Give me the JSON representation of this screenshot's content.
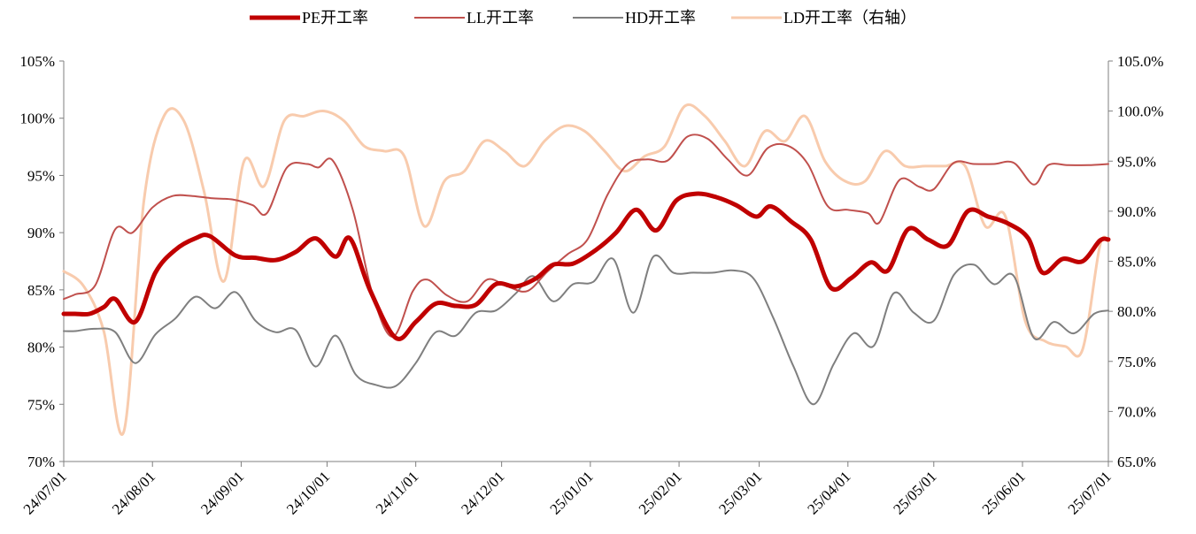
{
  "chart_data": {
    "type": "line",
    "title": "",
    "xlabel": "",
    "ylabel": "",
    "x_tick_labels": [
      "24/07/01",
      "24/08/01",
      "24/09/01",
      "24/10/01",
      "24/11/01",
      "24/12/01",
      "25/01/01",
      "25/02/01",
      "25/03/01",
      "25/04/01",
      "25/05/01",
      "25/06/01",
      "25/07/01"
    ],
    "x_range": [
      "2024-07-01",
      "2025-07-01"
    ],
    "y_left": {
      "ylim": [
        70,
        105
      ],
      "ticks": [
        70,
        75,
        80,
        85,
        90,
        95,
        100,
        105
      ],
      "tick_labels": [
        "70%",
        "75%",
        "80%",
        "85%",
        "90%",
        "95%",
        "100%",
        "105%"
      ]
    },
    "y_right": {
      "ylim": [
        65,
        105
      ],
      "ticks": [
        65,
        70,
        75,
        80,
        85,
        90,
        95,
        100,
        105
      ],
      "tick_labels": [
        "65.0%",
        "70.0%",
        "75.0%",
        "80.0%",
        "85.0%",
        "90.0%",
        "95.0%",
        "100.0%",
        "105.0%"
      ]
    },
    "grid": false,
    "legend_position": "top-center",
    "series": [
      {
        "name": "PE开工率",
        "axis": "left",
        "color": "#C00000",
        "width": 5,
        "points": [
          [
            "2024-07-01",
            82.9
          ],
          [
            "2024-07-05",
            82.9
          ],
          [
            "2024-07-10",
            82.9
          ],
          [
            "2024-07-15",
            83.5
          ],
          [
            "2024-07-19",
            84.2
          ],
          [
            "2024-07-26",
            82.2
          ],
          [
            "2024-08-02",
            86.5
          ],
          [
            "2024-08-09",
            88.5
          ],
          [
            "2024-08-16",
            89.5
          ],
          [
            "2024-08-21",
            89.7
          ],
          [
            "2024-08-30",
            88.0
          ],
          [
            "2024-09-06",
            87.8
          ],
          [
            "2024-09-13",
            87.6
          ],
          [
            "2024-09-20",
            88.3
          ],
          [
            "2024-09-27",
            89.5
          ],
          [
            "2024-10-04",
            87.9
          ],
          [
            "2024-10-09",
            89.5
          ],
          [
            "2024-10-16",
            85.0
          ],
          [
            "2024-10-25",
            80.8
          ],
          [
            "2024-11-01",
            82.2
          ],
          [
            "2024-11-08",
            83.8
          ],
          [
            "2024-11-15",
            83.6
          ],
          [
            "2024-11-22",
            83.7
          ],
          [
            "2024-11-29",
            85.5
          ],
          [
            "2024-12-06",
            85.3
          ],
          [
            "2024-12-13",
            86.0
          ],
          [
            "2024-12-19",
            87.2
          ],
          [
            "2024-12-26",
            87.3
          ],
          [
            "2025-01-03",
            88.5
          ],
          [
            "2025-01-10",
            90.0
          ],
          [
            "2025-01-17",
            92.0
          ],
          [
            "2025-01-24",
            90.2
          ],
          [
            "2025-01-31",
            92.8
          ],
          [
            "2025-02-07",
            93.4
          ],
          [
            "2025-02-14",
            93.1
          ],
          [
            "2025-02-21",
            92.4
          ],
          [
            "2025-02-28",
            91.4
          ],
          [
            "2025-03-05",
            92.3
          ],
          [
            "2025-03-12",
            91.0
          ],
          [
            "2025-03-19",
            89.4
          ],
          [
            "2025-03-26",
            85.2
          ],
          [
            "2025-04-02",
            86.0
          ],
          [
            "2025-04-09",
            87.4
          ],
          [
            "2025-04-15",
            86.7
          ],
          [
            "2025-04-22",
            90.3
          ],
          [
            "2025-04-29",
            89.4
          ],
          [
            "2025-05-06",
            88.9
          ],
          [
            "2025-05-13",
            91.9
          ],
          [
            "2025-05-20",
            91.4
          ],
          [
            "2025-05-27",
            90.8
          ],
          [
            "2025-06-03",
            89.5
          ],
          [
            "2025-06-08",
            86.5
          ],
          [
            "2025-06-15",
            87.7
          ],
          [
            "2025-06-22",
            87.5
          ],
          [
            "2025-06-28",
            89.3
          ],
          [
            "2025-07-01",
            89.4
          ]
        ]
      },
      {
        "name": "LL开工率",
        "axis": "left",
        "color": "#C0504D",
        "width": 2,
        "points": [
          [
            "2024-07-01",
            84.2
          ],
          [
            "2024-07-05",
            84.6
          ],
          [
            "2024-07-12",
            85.4
          ],
          [
            "2024-07-19",
            90.3
          ],
          [
            "2024-07-25",
            90.0
          ],
          [
            "2024-08-01",
            92.2
          ],
          [
            "2024-08-08",
            93.2
          ],
          [
            "2024-08-15",
            93.2
          ],
          [
            "2024-08-22",
            93.0
          ],
          [
            "2024-08-29",
            92.9
          ],
          [
            "2024-09-05",
            92.4
          ],
          [
            "2024-09-10",
            91.7
          ],
          [
            "2024-09-17",
            95.7
          ],
          [
            "2024-09-24",
            96.0
          ],
          [
            "2024-09-28",
            95.7
          ],
          [
            "2024-10-03",
            96.3
          ],
          [
            "2024-10-10",
            92.0
          ],
          [
            "2024-10-17",
            84.5
          ],
          [
            "2024-10-24",
            80.9
          ],
          [
            "2024-10-31",
            84.9
          ],
          [
            "2024-11-05",
            85.9
          ],
          [
            "2024-11-12",
            84.5
          ],
          [
            "2024-11-19",
            84.0
          ],
          [
            "2024-11-26",
            85.9
          ],
          [
            "2024-12-03",
            85.3
          ],
          [
            "2024-12-10",
            84.9
          ],
          [
            "2024-12-17",
            86.6
          ],
          [
            "2024-12-24",
            88.1
          ],
          [
            "2024-12-31",
            89.4
          ],
          [
            "2025-01-07",
            93.3
          ],
          [
            "2025-01-14",
            96.0
          ],
          [
            "2025-01-21",
            96.4
          ],
          [
            "2025-01-28",
            96.3
          ],
          [
            "2025-02-04",
            98.4
          ],
          [
            "2025-02-11",
            98.2
          ],
          [
            "2025-02-18",
            96.4
          ],
          [
            "2025-02-25",
            95.0
          ],
          [
            "2025-03-04",
            97.4
          ],
          [
            "2025-03-11",
            97.6
          ],
          [
            "2025-03-18",
            96.0
          ],
          [
            "2025-03-25",
            92.3
          ],
          [
            "2025-04-01",
            92.0
          ],
          [
            "2025-04-08",
            91.7
          ],
          [
            "2025-04-12",
            90.9
          ],
          [
            "2025-04-19",
            94.6
          ],
          [
            "2025-04-26",
            94.0
          ],
          [
            "2025-05-01",
            93.8
          ],
          [
            "2025-05-08",
            96.1
          ],
          [
            "2025-05-15",
            96.0
          ],
          [
            "2025-05-22",
            96.0
          ],
          [
            "2025-05-29",
            96.1
          ],
          [
            "2025-06-05",
            94.2
          ],
          [
            "2025-06-10",
            95.9
          ],
          [
            "2025-06-17",
            95.9
          ],
          [
            "2025-06-24",
            95.9
          ],
          [
            "2025-07-01",
            96.0
          ]
        ]
      },
      {
        "name": "HD开工率",
        "axis": "left",
        "color": "#7F7F7F",
        "width": 2,
        "points": [
          [
            "2024-07-01",
            81.4
          ],
          [
            "2024-07-05",
            81.4
          ],
          [
            "2024-07-12",
            81.6
          ],
          [
            "2024-07-19",
            81.3
          ],
          [
            "2024-07-26",
            78.6
          ],
          [
            "2024-08-02",
            81.1
          ],
          [
            "2024-08-09",
            82.5
          ],
          [
            "2024-08-16",
            84.4
          ],
          [
            "2024-08-23",
            83.4
          ],
          [
            "2024-08-30",
            84.8
          ],
          [
            "2024-09-06",
            82.3
          ],
          [
            "2024-09-13",
            81.3
          ],
          [
            "2024-09-20",
            81.5
          ],
          [
            "2024-09-27",
            78.3
          ],
          [
            "2024-10-04",
            81.0
          ],
          [
            "2024-10-11",
            77.6
          ],
          [
            "2024-10-18",
            76.7
          ],
          [
            "2024-10-25",
            76.6
          ],
          [
            "2024-11-01",
            78.6
          ],
          [
            "2024-11-08",
            81.3
          ],
          [
            "2024-11-15",
            81.0
          ],
          [
            "2024-11-22",
            83.0
          ],
          [
            "2024-11-29",
            83.2
          ],
          [
            "2024-12-06",
            84.7
          ],
          [
            "2024-12-12",
            86.2
          ],
          [
            "2024-12-19",
            84.0
          ],
          [
            "2024-12-26",
            85.5
          ],
          [
            "2025-01-02",
            85.7
          ],
          [
            "2025-01-09",
            87.7
          ],
          [
            "2025-01-16",
            83.0
          ],
          [
            "2025-01-23",
            87.9
          ],
          [
            "2025-01-30",
            86.5
          ],
          [
            "2025-02-06",
            86.5
          ],
          [
            "2025-02-13",
            86.5
          ],
          [
            "2025-02-20",
            86.7
          ],
          [
            "2025-02-27",
            86.0
          ],
          [
            "2025-03-06",
            82.5
          ],
          [
            "2025-03-13",
            78.3
          ],
          [
            "2025-03-20",
            75.0
          ],
          [
            "2025-03-27",
            78.5
          ],
          [
            "2025-04-03",
            81.2
          ],
          [
            "2025-04-10",
            80.1
          ],
          [
            "2025-04-17",
            84.7
          ],
          [
            "2025-04-24",
            83.0
          ],
          [
            "2025-05-01",
            82.3
          ],
          [
            "2025-05-08",
            86.3
          ],
          [
            "2025-05-15",
            87.2
          ],
          [
            "2025-05-22",
            85.5
          ],
          [
            "2025-05-29",
            86.2
          ],
          [
            "2025-06-05",
            80.8
          ],
          [
            "2025-06-12",
            82.2
          ],
          [
            "2025-06-19",
            81.2
          ],
          [
            "2025-06-26",
            82.9
          ],
          [
            "2025-07-01",
            83.2
          ]
        ]
      },
      {
        "name": "LD开工率（右轴）",
        "axis": "right",
        "color": "#F8CBAD",
        "width": 3,
        "points": [
          [
            "2024-07-01",
            84.0
          ],
          [
            "2024-07-08",
            82.5
          ],
          [
            "2024-07-15",
            78.0
          ],
          [
            "2024-07-22",
            68.0
          ],
          [
            "2024-07-29",
            91.0
          ],
          [
            "2024-08-05",
            99.5
          ],
          [
            "2024-08-12",
            99.0
          ],
          [
            "2024-08-19",
            92.0
          ],
          [
            "2024-08-26",
            83.0
          ],
          [
            "2024-09-02",
            95.0
          ],
          [
            "2024-09-09",
            92.5
          ],
          [
            "2024-09-16",
            99.0
          ],
          [
            "2024-09-23",
            99.5
          ],
          [
            "2024-09-30",
            100.0
          ],
          [
            "2024-10-07",
            99.0
          ],
          [
            "2024-10-14",
            96.5
          ],
          [
            "2024-10-21",
            96.0
          ],
          [
            "2024-10-28",
            95.5
          ],
          [
            "2024-11-04",
            88.5
          ],
          [
            "2024-11-11",
            93.0
          ],
          [
            "2024-11-18",
            94.0
          ],
          [
            "2024-11-25",
            97.0
          ],
          [
            "2024-12-02",
            96.0
          ],
          [
            "2024-12-09",
            94.5
          ],
          [
            "2024-12-16",
            97.0
          ],
          [
            "2024-12-23",
            98.5
          ],
          [
            "2024-12-30",
            98.0
          ],
          [
            "2025-01-06",
            96.0
          ],
          [
            "2025-01-13",
            94.0
          ],
          [
            "2025-01-20",
            95.5
          ],
          [
            "2025-01-27",
            96.5
          ],
          [
            "2025-02-03",
            100.5
          ],
          [
            "2025-02-10",
            99.5
          ],
          [
            "2025-02-17",
            97.0
          ],
          [
            "2025-02-24",
            94.5
          ],
          [
            "2025-03-03",
            98.0
          ],
          [
            "2025-03-10",
            97.0
          ],
          [
            "2025-03-17",
            99.5
          ],
          [
            "2025-03-24",
            95.0
          ],
          [
            "2025-03-31",
            93.0
          ],
          [
            "2025-04-07",
            93.0
          ],
          [
            "2025-04-14",
            96.0
          ],
          [
            "2025-04-21",
            94.5
          ],
          [
            "2025-04-28",
            94.5
          ],
          [
            "2025-05-05",
            94.5
          ],
          [
            "2025-05-12",
            94.5
          ],
          [
            "2025-05-19",
            88.5
          ],
          [
            "2025-05-26",
            89.5
          ],
          [
            "2025-06-02",
            79.0
          ],
          [
            "2025-06-09",
            77.0
          ],
          [
            "2025-06-16",
            76.5
          ],
          [
            "2025-06-22",
            76.2
          ],
          [
            "2025-06-28",
            86.5
          ],
          [
            "2025-07-01",
            87.0
          ]
        ]
      }
    ]
  }
}
